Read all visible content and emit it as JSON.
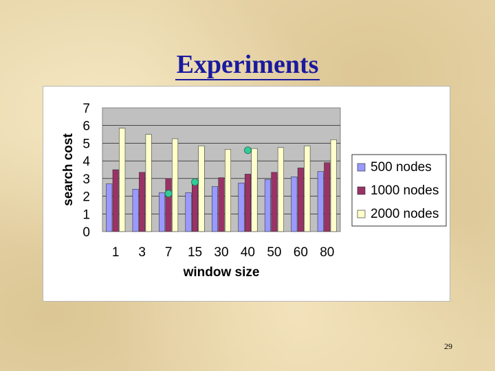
{
  "slide": {
    "title": "Experiments",
    "page_number": "29"
  },
  "chart_data": {
    "type": "bar",
    "title": "",
    "xlabel": "window size",
    "ylabel": "search cost",
    "categories": [
      "1",
      "3",
      "7",
      "15",
      "30",
      "40",
      "50",
      "60",
      "80"
    ],
    "ylim": [
      0,
      7
    ],
    "yticks": [
      "0",
      "1",
      "2",
      "3",
      "4",
      "5",
      "6",
      "7"
    ],
    "grid": true,
    "legend_position": "right",
    "series": [
      {
        "name": "500 nodes",
        "color": "#9999ff",
        "values": [
          2.7,
          2.4,
          2.2,
          2.2,
          2.55,
          2.75,
          2.95,
          3.1,
          3.4
        ]
      },
      {
        "name": "1000 nodes",
        "color": "#993366",
        "values": [
          3.5,
          3.35,
          3.0,
          2.9,
          3.05,
          3.25,
          3.35,
          3.6,
          3.9
        ]
      },
      {
        "name": "2000 nodes",
        "color": "#ffffcc",
        "values": [
          5.85,
          5.5,
          5.25,
          4.85,
          4.65,
          4.7,
          4.75,
          4.85,
          5.2
        ]
      }
    ],
    "markers": [
      {
        "category": "7",
        "value": 2.15,
        "color": "#33cc99"
      },
      {
        "category": "15",
        "value": 2.8,
        "color": "#33cc99"
      },
      {
        "category": "40",
        "value": 4.6,
        "color": "#33cc99"
      }
    ]
  }
}
